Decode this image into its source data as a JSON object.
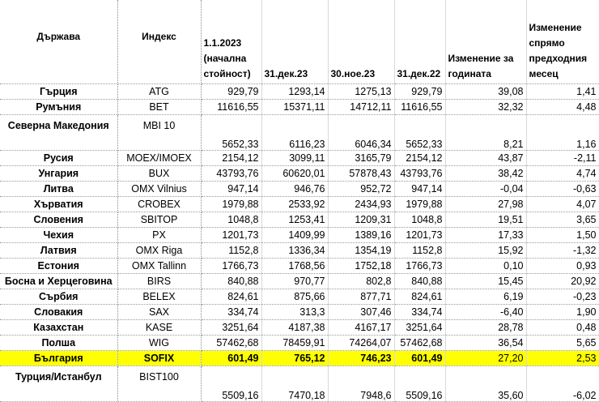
{
  "table": {
    "headers": [
      "Държава",
      "Индекс",
      "1.1.2023 (начална стойност)",
      "31.дек.23",
      "30.ное.23",
      "31.дек.22",
      "Изменение за годината",
      "Изменение спрямо предходния месец"
    ],
    "highlight_color": "#ffff00",
    "rows": [
      [
        "Гърция",
        "ATG",
        "929,79",
        "1293,14",
        "1275,13",
        "929,79",
        "39,08",
        "1,41"
      ],
      [
        "Румъния",
        "BET",
        "11616,55",
        "15371,11",
        "14712,11",
        "11616,55",
        "32,32",
        "4,48"
      ],
      [
        "Северна Македония",
        "MBI 10",
        "5652,33",
        "6116,23",
        "6046,34",
        "5652,33",
        "8,21",
        "1,16"
      ],
      [
        "Русия",
        "MOEX/IMOEX",
        "2154,12",
        "3099,11",
        "3165,79",
        "2154,12",
        "43,87",
        "-2,11"
      ],
      [
        "Унгария",
        "BUX",
        "43793,76",
        "60620,01",
        "57878,43",
        "43793,76",
        "38,42",
        "4,74"
      ],
      [
        "Литва",
        "OMX Vilnius",
        "947,14",
        "946,76",
        "952,72",
        "947,14",
        "-0,04",
        "-0,63"
      ],
      [
        "Хърватия",
        "CROBEX",
        "1979,88",
        "2533,92",
        "2434,93",
        "1979,88",
        "27,98",
        "4,07"
      ],
      [
        "Словения",
        "SBITOP",
        "1048,8",
        "1253,41",
        "1209,31",
        "1048,8",
        "19,51",
        "3,65"
      ],
      [
        "Чехия",
        "PX",
        "1201,73",
        "1409,99",
        "1389,16",
        "1201,73",
        "17,33",
        "1,50"
      ],
      [
        "Латвия",
        "OMX Riga",
        "1152,8",
        "1336,34",
        "1354,19",
        "1152,8",
        "15,92",
        "-1,32"
      ],
      [
        "Естония",
        "OMX Tallinn",
        "1766,73",
        "1768,56",
        "1752,18",
        "1766,73",
        "0,10",
        "0,93"
      ],
      [
        "Босна и Херцеговина",
        "BIRS",
        "840,88",
        "970,77",
        "802,8",
        "840,88",
        "15,45",
        "20,92"
      ],
      [
        "Сърбия",
        "BELEX",
        "824,61",
        "875,66",
        "877,71",
        "824,61",
        "6,19",
        "-0,23"
      ],
      [
        "Словакия",
        "SAX",
        "334,74",
        "313,3",
        "307,46",
        "334,74",
        "-6,40",
        "1,90"
      ],
      [
        "Казахстан",
        "KASE",
        "3251,64",
        "4187,38",
        "4167,17",
        "3251,64",
        "28,78",
        "0,48"
      ],
      [
        "Полша",
        "WIG",
        "57462,68",
        "78459,91",
        "74264,07",
        "57462,68",
        "36,54",
        "5,65"
      ],
      [
        "България",
        "SOFIX",
        "601,49",
        "765,12",
        "746,23",
        "601,49",
        "27,20",
        "2,53"
      ],
      [
        "Турция/Истанбул",
        "BIST100",
        "5509,16",
        "7470,18",
        "7948,6",
        "5509,16",
        "35,60",
        "-6,02"
      ]
    ]
  }
}
